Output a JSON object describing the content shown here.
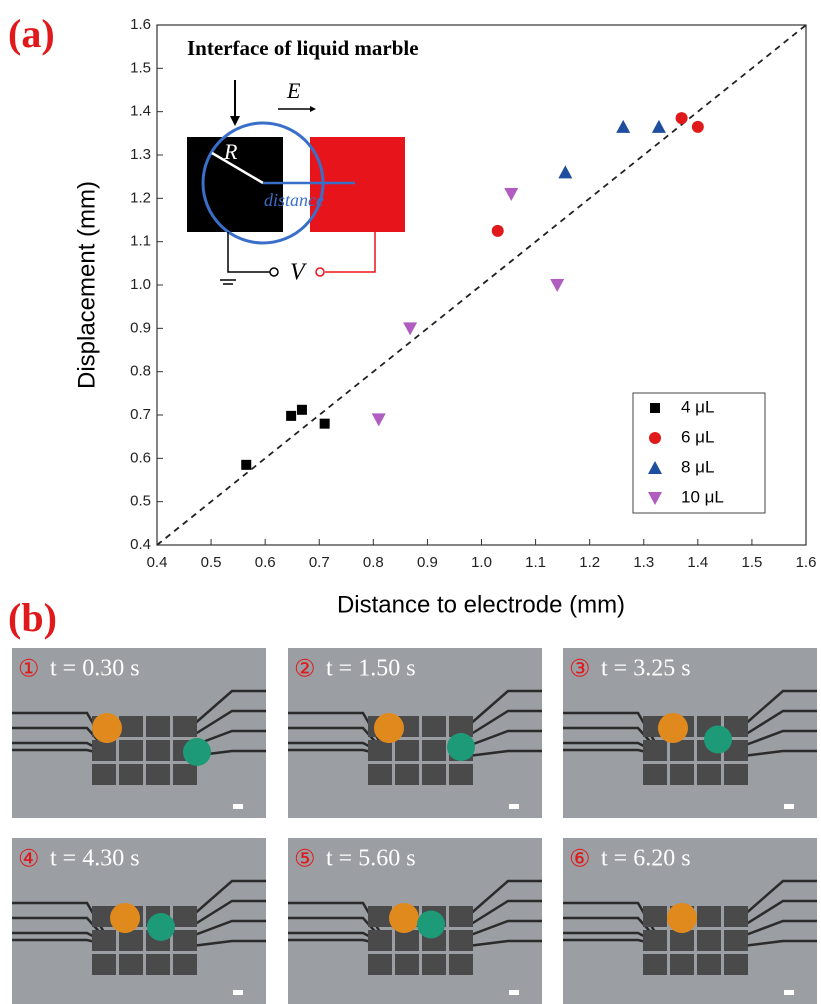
{
  "panel_a": "(a)",
  "panel_b": "(b)",
  "chart_data": {
    "type": "scatter",
    "x_label": "Distance to electrode (mm)",
    "y_label": "Displacement (mm)",
    "xlim": [
      0.4,
      1.6
    ],
    "ylim": [
      0.4,
      1.6
    ],
    "xticks": [
      0.4,
      0.5,
      0.6,
      0.7,
      0.8,
      0.9,
      {
        "value": 1,
        "label": "1.0"
      },
      1.1,
      1.2,
      1.3,
      1.4,
      1.5,
      1.6
    ],
    "yticks": [
      0.4,
      0.5,
      0.6,
      0.7,
      0.8,
      0.9,
      {
        "value": 1,
        "label": "1.0"
      },
      1.1,
      1.2,
      1.3,
      1.4,
      1.5,
      1.6
    ],
    "legend": "lower right",
    "series": [
      {
        "name": "4 μL",
        "color": "#000000",
        "marker": "square",
        "x": [
          0.565,
          0.648,
          0.668,
          0.71
        ],
        "values": [
          0.585,
          0.698,
          0.712,
          0.68
        ]
      },
      {
        "name": "6 μL",
        "color": "#e0191b",
        "marker": "circle",
        "x": [
          1.03,
          1.37,
          1.4
        ],
        "values": [
          1.125,
          1.385,
          1.365
        ]
      },
      {
        "name": "8 μL",
        "color": "#1f4e9f",
        "marker": "triangle-up",
        "x": [
          1.155,
          1.262,
          1.328
        ],
        "values": [
          1.26,
          1.365,
          1.365
        ]
      },
      {
        "name": "10 μL",
        "color": "#b05cc0",
        "marker": "triangle-down",
        "x": [
          0.81,
          0.868,
          1.055,
          1.14
        ],
        "values": [
          0.69,
          0.9,
          1.21,
          1.0
        ]
      }
    ],
    "inset": {
      "title": "Interface of liquid marble",
      "field": "E",
      "radius": "R",
      "distance": "distance",
      "voltage": "V"
    }
  },
  "frames": [
    {
      "number": "①",
      "time": "t = 0.30 s"
    },
    {
      "number": "②",
      "time": "t = 1.50 s"
    },
    {
      "number": "③",
      "time": "t = 3.25 s"
    },
    {
      "number": "④",
      "time": "t = 4.30 s"
    },
    {
      "number": "⑤",
      "time": "t = 5.60 s"
    },
    {
      "number": "⑥",
      "time": "t = 6.20 s"
    }
  ]
}
